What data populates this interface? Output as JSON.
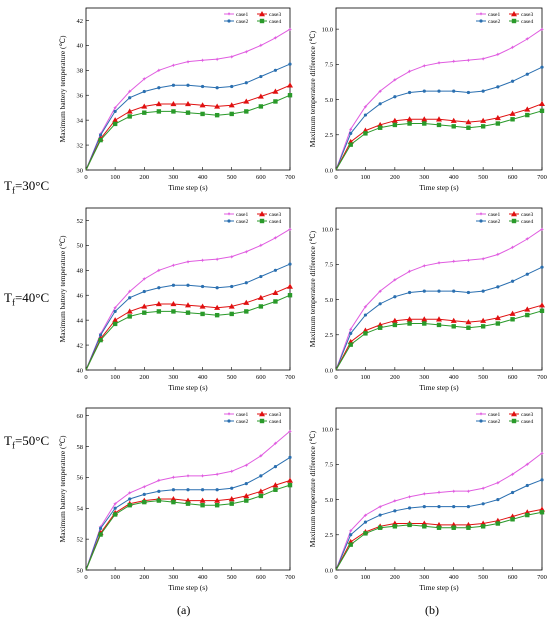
{
  "row_labels": [
    {
      "main": "T",
      "sub": "f",
      "rest": "=30°C"
    },
    {
      "main": "T",
      "sub": "f",
      "rest": "=40°C"
    },
    {
      "main": "T",
      "sub": "f",
      "rest": "=50°C"
    }
  ],
  "column_labels": [
    "(a)",
    "(b)"
  ],
  "colors": {
    "case1": "#e05ce0",
    "case2": "#2a6fb0",
    "case3": "#e01010",
    "case4": "#2a9a2a"
  },
  "chart_data": [
    {
      "type": "line",
      "xlabel": "Time step (s)",
      "ylabel": "Maximum battery temperature (℃)",
      "xlim": [
        0,
        700
      ],
      "ylim": [
        30,
        43
      ],
      "xticks": [
        0,
        100,
        200,
        300,
        400,
        500,
        600,
        700
      ],
      "yticks": [
        30,
        32,
        34,
        36,
        38,
        40,
        42
      ],
      "x": [
        0,
        50,
        100,
        150,
        200,
        250,
        300,
        350,
        400,
        450,
        500,
        550,
        600,
        650,
        700
      ],
      "legend": [
        "case1",
        "case3",
        "case2",
        "case4"
      ],
      "series": [
        {
          "name": "case1",
          "values": [
            30,
            32.9,
            35,
            36.3,
            37.3,
            38.0,
            38.4,
            38.7,
            38.8,
            38.9,
            39.1,
            39.5,
            40.0,
            40.6,
            41.3
          ]
        },
        {
          "name": "case2",
          "values": [
            30,
            32.8,
            34.7,
            35.8,
            36.3,
            36.6,
            36.8,
            36.8,
            36.7,
            36.6,
            36.7,
            37.0,
            37.5,
            38.0,
            38.5
          ]
        },
        {
          "name": "case3",
          "values": [
            30,
            32.5,
            34.0,
            34.7,
            35.1,
            35.3,
            35.3,
            35.3,
            35.2,
            35.1,
            35.2,
            35.5,
            35.9,
            36.3,
            36.8
          ]
        },
        {
          "name": "case4",
          "values": [
            30,
            32.4,
            33.7,
            34.3,
            34.6,
            34.7,
            34.7,
            34.6,
            34.5,
            34.4,
            34.5,
            34.7,
            35.1,
            35.5,
            36.0
          ]
        }
      ]
    },
    {
      "type": "line",
      "xlabel": "Time step (s)",
      "ylabel": "Maximum temperature difference (℃)",
      "xlim": [
        0,
        700
      ],
      "ylim": [
        0,
        11.5
      ],
      "xticks": [
        0,
        100,
        200,
        300,
        400,
        500,
        600,
        700
      ],
      "yticks": [
        0,
        2.5,
        5.0,
        7.5,
        10.0
      ],
      "x": [
        0,
        50,
        100,
        150,
        200,
        250,
        300,
        350,
        400,
        450,
        500,
        550,
        600,
        650,
        700
      ],
      "legend": [
        "case1",
        "case3",
        "case2",
        "case4"
      ],
      "series": [
        {
          "name": "case1",
          "values": [
            0,
            2.9,
            4.5,
            5.6,
            6.4,
            7.0,
            7.4,
            7.6,
            7.7,
            7.8,
            7.9,
            8.2,
            8.7,
            9.3,
            10.0
          ]
        },
        {
          "name": "case2",
          "values": [
            0,
            2.6,
            3.9,
            4.7,
            5.2,
            5.5,
            5.6,
            5.6,
            5.6,
            5.5,
            5.6,
            5.9,
            6.3,
            6.8,
            7.3
          ]
        },
        {
          "name": "case3",
          "values": [
            0,
            2.0,
            2.8,
            3.2,
            3.5,
            3.6,
            3.6,
            3.6,
            3.5,
            3.4,
            3.5,
            3.7,
            4.0,
            4.3,
            4.7
          ]
        },
        {
          "name": "case4",
          "values": [
            0,
            1.8,
            2.6,
            3.0,
            3.2,
            3.3,
            3.3,
            3.2,
            3.1,
            3.0,
            3.1,
            3.3,
            3.6,
            3.9,
            4.2
          ]
        }
      ]
    },
    {
      "type": "line",
      "xlabel": "Time step (s)",
      "ylabel": "Maximum battery temperature (℃)",
      "xlim": [
        0,
        700
      ],
      "ylim": [
        40,
        53
      ],
      "xticks": [
        0,
        100,
        200,
        300,
        400,
        500,
        600,
        700
      ],
      "yticks": [
        40,
        42,
        44,
        46,
        48,
        50,
        52
      ],
      "x": [
        0,
        50,
        100,
        150,
        200,
        250,
        300,
        350,
        400,
        450,
        500,
        550,
        600,
        650,
        700
      ],
      "legend": [
        "case1",
        "case3",
        "case2",
        "case4"
      ],
      "series": [
        {
          "name": "case1",
          "values": [
            40,
            42.9,
            45,
            46.3,
            47.3,
            48.0,
            48.4,
            48.7,
            48.8,
            48.9,
            49.1,
            49.5,
            50.0,
            50.6,
            51.3
          ]
        },
        {
          "name": "case2",
          "values": [
            40,
            42.8,
            44.7,
            45.8,
            46.3,
            46.6,
            46.8,
            46.8,
            46.7,
            46.6,
            46.7,
            47.0,
            47.5,
            48.0,
            48.5
          ]
        },
        {
          "name": "case3",
          "values": [
            40,
            42.5,
            44.0,
            44.7,
            45.1,
            45.3,
            45.3,
            45.2,
            45.1,
            45.0,
            45.1,
            45.4,
            45.8,
            46.2,
            46.7
          ]
        },
        {
          "name": "case4",
          "values": [
            40,
            42.4,
            43.7,
            44.3,
            44.6,
            44.7,
            44.7,
            44.6,
            44.5,
            44.4,
            44.5,
            44.7,
            45.1,
            45.5,
            46.0
          ]
        }
      ]
    },
    {
      "type": "line",
      "xlabel": "Time step (s)",
      "ylabel": "Maximum temperature difference (℃)",
      "xlim": [
        0,
        700
      ],
      "ylim": [
        0,
        11.5
      ],
      "xticks": [
        0,
        100,
        200,
        300,
        400,
        500,
        600,
        700
      ],
      "yticks": [
        0,
        2.5,
        5.0,
        7.5,
        10.0
      ],
      "x": [
        0,
        50,
        100,
        150,
        200,
        250,
        300,
        350,
        400,
        450,
        500,
        550,
        600,
        650,
        700
      ],
      "legend": [
        "case1",
        "case3",
        "case2",
        "case4"
      ],
      "series": [
        {
          "name": "case1",
          "values": [
            0,
            2.9,
            4.5,
            5.6,
            6.4,
            7.0,
            7.4,
            7.6,
            7.7,
            7.8,
            7.9,
            8.2,
            8.7,
            9.3,
            10.0
          ]
        },
        {
          "name": "case2",
          "values": [
            0,
            2.6,
            3.9,
            4.7,
            5.2,
            5.5,
            5.6,
            5.6,
            5.6,
            5.5,
            5.6,
            5.9,
            6.3,
            6.8,
            7.3
          ]
        },
        {
          "name": "case3",
          "values": [
            0,
            2.0,
            2.8,
            3.2,
            3.5,
            3.6,
            3.6,
            3.6,
            3.5,
            3.4,
            3.5,
            3.7,
            4.0,
            4.3,
            4.6
          ]
        },
        {
          "name": "case4",
          "values": [
            0,
            1.8,
            2.6,
            3.0,
            3.2,
            3.3,
            3.3,
            3.2,
            3.1,
            3.0,
            3.1,
            3.3,
            3.6,
            3.9,
            4.2
          ]
        }
      ]
    },
    {
      "type": "line",
      "xlabel": "Time step (s)",
      "ylabel": "Maximum battery temperature (℃)",
      "xlim": [
        0,
        700
      ],
      "ylim": [
        50,
        60.5
      ],
      "xticks": [
        0,
        100,
        200,
        300,
        400,
        500,
        600,
        700
      ],
      "yticks": [
        50,
        52,
        54,
        56,
        58,
        60
      ],
      "x": [
        0,
        50,
        100,
        150,
        200,
        250,
        300,
        350,
        400,
        450,
        500,
        550,
        600,
        650,
        700
      ],
      "legend": [
        "case1",
        "case3",
        "case2",
        "case4"
      ],
      "series": [
        {
          "name": "case1",
          "values": [
            50,
            52.8,
            54.3,
            55.0,
            55.4,
            55.8,
            56.0,
            56.1,
            56.1,
            56.2,
            56.4,
            56.8,
            57.4,
            58.2,
            59.0
          ]
        },
        {
          "name": "case2",
          "values": [
            50,
            52.7,
            54.0,
            54.6,
            54.9,
            55.1,
            55.2,
            55.2,
            55.2,
            55.2,
            55.3,
            55.6,
            56.1,
            56.7,
            57.3
          ]
        },
        {
          "name": "case3",
          "values": [
            50,
            52.4,
            53.7,
            54.3,
            54.5,
            54.6,
            54.6,
            54.5,
            54.5,
            54.5,
            54.6,
            54.8,
            55.1,
            55.5,
            55.8
          ]
        },
        {
          "name": "case4",
          "values": [
            50,
            52.3,
            53.6,
            54.2,
            54.4,
            54.5,
            54.4,
            54.3,
            54.2,
            54.2,
            54.3,
            54.5,
            54.8,
            55.2,
            55.5
          ]
        }
      ]
    },
    {
      "type": "line",
      "xlabel": "Time step (s)",
      "ylabel": "Maximum temperature difference (℃)",
      "xlim": [
        0,
        700
      ],
      "ylim": [
        0,
        11.5
      ],
      "xticks": [
        0,
        100,
        200,
        300,
        400,
        500,
        600,
        700
      ],
      "yticks": [
        0,
        2.5,
        5.0,
        7.5,
        10.0
      ],
      "x": [
        0,
        50,
        100,
        150,
        200,
        250,
        300,
        350,
        400,
        450,
        500,
        550,
        600,
        650,
        700
      ],
      "legend": [
        "case1",
        "case3",
        "case2",
        "case4"
      ],
      "series": [
        {
          "name": "case1",
          "values": [
            0,
            2.8,
            3.9,
            4.5,
            4.9,
            5.2,
            5.4,
            5.5,
            5.6,
            5.6,
            5.8,
            6.2,
            6.8,
            7.5,
            8.3
          ]
        },
        {
          "name": "case2",
          "values": [
            0,
            2.5,
            3.4,
            3.9,
            4.2,
            4.4,
            4.5,
            4.5,
            4.5,
            4.5,
            4.7,
            5.0,
            5.5,
            6.0,
            6.4
          ]
        },
        {
          "name": "case3",
          "values": [
            0,
            2.0,
            2.7,
            3.1,
            3.3,
            3.3,
            3.3,
            3.2,
            3.2,
            3.2,
            3.3,
            3.5,
            3.8,
            4.1,
            4.3
          ]
        },
        {
          "name": "case4",
          "values": [
            0,
            1.8,
            2.6,
            3.0,
            3.1,
            3.2,
            3.1,
            3.0,
            3.0,
            3.0,
            3.1,
            3.3,
            3.6,
            3.9,
            4.1
          ]
        }
      ]
    }
  ]
}
